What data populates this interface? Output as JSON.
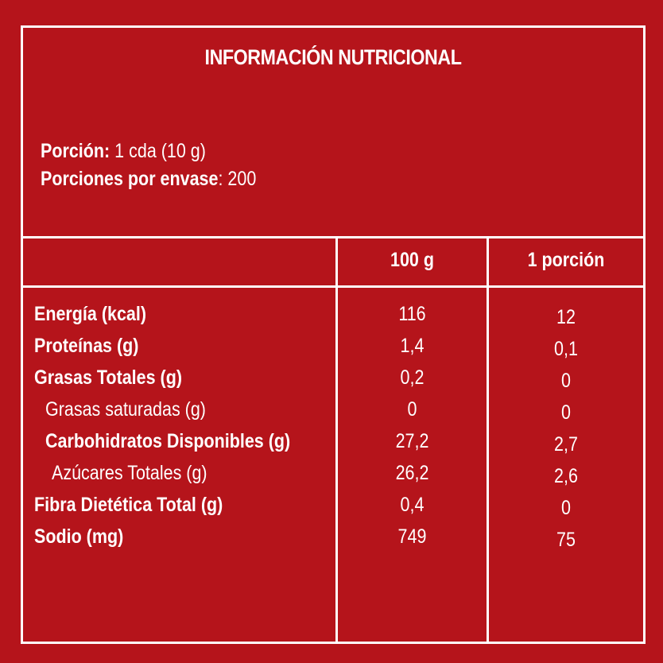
{
  "title": "INFORMACIÓN NUTRICIONAL",
  "portion": {
    "label": "Porción:",
    "value": " 1 cda (10 g)",
    "servings_label": "Porciones por envase",
    "servings_value": ": 200"
  },
  "columns": [
    "100 g",
    "1 porción"
  ],
  "rows": [
    {
      "label": "Energía (kcal)",
      "v100": "116",
      "vpor": "12",
      "bold": true,
      "indent": 0
    },
    {
      "label": "Proteínas (g)",
      "v100": "1,4",
      "vpor": "0,1",
      "bold": true,
      "indent": 0
    },
    {
      "label": "Grasas Totales (g)",
      "v100": "0,2",
      "vpor": "0",
      "bold": true,
      "indent": 0
    },
    {
      "label": "Grasas saturadas (g)",
      "v100": "0",
      "vpor": "0",
      "bold": false,
      "indent": 1
    },
    {
      "label": "Carbohidratos Disponibles (g)",
      "v100": "27,2",
      "vpor": "2,7",
      "bold": true,
      "indent": 1
    },
    {
      "label": "Azúcares Totales (g)",
      "v100": "26,2",
      "vpor": "2,6",
      "bold": false,
      "indent": 2
    },
    {
      "label": "Fibra Dietética Total (g)",
      "v100": "0,4",
      "vpor": "0",
      "bold": true,
      "indent": 0
    },
    {
      "label": "Sodio (mg)",
      "v100": "749",
      "vpor": "75",
      "bold": true,
      "indent": 0
    }
  ],
  "colors": {
    "background": "#b5141b",
    "foreground": "#ffffff"
  }
}
